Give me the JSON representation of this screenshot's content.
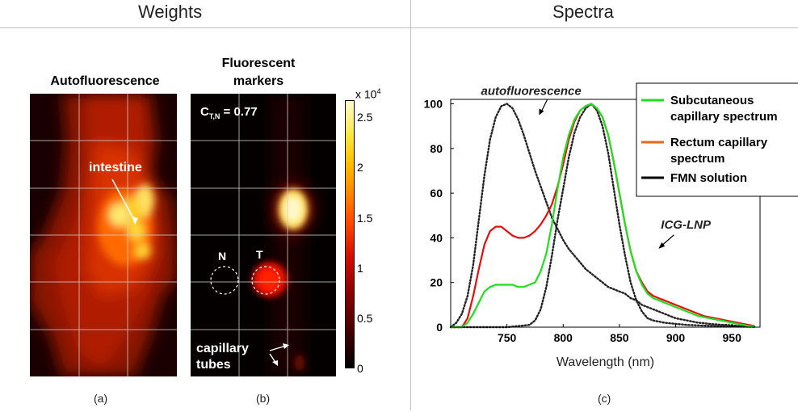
{
  "headers": {
    "weights": "Weights",
    "spectra": "Spectra"
  },
  "panel_a": {
    "title": "Autofluorescence",
    "annotation": "intestine",
    "sublabel": "(a)"
  },
  "panel_b": {
    "title_line1": "Fluorescent",
    "title_line2": "markers",
    "corr_prefix": "C",
    "corr_sub": "T,N",
    "corr_value": "= 0.77",
    "label_n": "N",
    "label_t": "T",
    "annotation_line1": "capillary",
    "annotation_line2": "tubes",
    "sublabel": "(b)"
  },
  "colorbar": {
    "multiplier": "x 10",
    "exponent": "4",
    "ticks": [
      "2.5",
      "2",
      "1.5",
      "1",
      "0.5",
      "0"
    ]
  },
  "panel_c": {
    "sublabel": "(c)"
  },
  "chart_data": {
    "type": "line",
    "xlabel": "Wavelength (nm)",
    "ylabel": "",
    "xlim": [
      700,
      975
    ],
    "ylim": [
      0,
      102
    ],
    "xticks": [
      750,
      800,
      850,
      900,
      950
    ],
    "yticks": [
      0,
      20,
      40,
      60,
      80,
      100
    ],
    "legend_position": "top-right",
    "annotations": [
      {
        "text": "autofluorescence",
        "x": 770,
        "y": 104
      },
      {
        "text": "ICG-LNP",
        "x": 907,
        "y": 42
      }
    ],
    "series": [
      {
        "name": "Subcutaneous capillary spectrum",
        "color": "#22dd22",
        "style": "solid",
        "x": [
          700,
          710,
          715,
          720,
          725,
          730,
          735,
          740,
          745,
          750,
          755,
          760,
          765,
          770,
          775,
          780,
          785,
          790,
          795,
          800,
          805,
          810,
          815,
          820,
          825,
          830,
          835,
          840,
          845,
          850,
          855,
          860,
          865,
          870,
          875,
          880,
          885,
          890,
          895,
          900,
          905,
          910,
          915,
          920,
          925,
          930,
          935,
          940,
          945,
          950,
          955,
          960,
          965,
          970
        ],
        "y": [
          0,
          0,
          2,
          6,
          11,
          16,
          18,
          19,
          19,
          19,
          19,
          18,
          18,
          19,
          20,
          25,
          33,
          46,
          62,
          76,
          86,
          93,
          97,
          99,
          100,
          98,
          94,
          86,
          74,
          60,
          46,
          34,
          25,
          19,
          15,
          13,
          12,
          11,
          10,
          9,
          8,
          7,
          6,
          5,
          4.5,
          4,
          3.5,
          3,
          2.5,
          2,
          1.5,
          1,
          0.5,
          0.3
        ]
      },
      {
        "name": "Rectum capillary spectrum",
        "color": "#e8651e",
        "style": "solid",
        "x": [],
        "y": []
      },
      {
        "name": "FMN solution",
        "color": "#000000",
        "style": "solid",
        "x": [],
        "y": []
      },
      {
        "name": "",
        "color": "#e01010",
        "style": "solid",
        "x": [
          700,
          710,
          715,
          720,
          725,
          730,
          735,
          740,
          745,
          750,
          755,
          760,
          765,
          770,
          775,
          780,
          785,
          790,
          795,
          800,
          805,
          810,
          815,
          820,
          825,
          830,
          835,
          840,
          845,
          850,
          855,
          860,
          865,
          870,
          875,
          880,
          885,
          890,
          895,
          900,
          905,
          910,
          915,
          920,
          925,
          930,
          935,
          940,
          945,
          950,
          955,
          960,
          965,
          970
        ],
        "y": [
          0,
          0,
          4,
          14,
          26,
          37,
          43,
          45,
          45,
          43,
          41,
          40,
          40,
          41,
          43,
          46,
          50,
          55,
          63,
          73,
          84,
          92,
          97,
          99,
          100,
          98,
          94,
          86,
          74,
          60,
          46,
          34,
          25,
          20,
          16,
          14,
          13,
          12,
          11,
          10,
          9,
          8,
          7,
          6,
          5,
          4.5,
          4,
          3.5,
          3,
          2.5,
          2,
          1.5,
          1,
          0.5
        ]
      },
      {
        "name": "",
        "color": "#222222",
        "style": "dotted",
        "x": [
          700,
          705,
          710,
          715,
          720,
          725,
          730,
          735,
          740,
          745,
          750,
          755,
          760,
          765,
          770,
          775,
          780,
          785,
          790,
          795,
          800,
          805,
          810,
          815,
          820,
          825,
          830,
          835,
          840,
          845,
          850,
          855,
          860,
          865,
          870,
          875,
          880,
          885,
          890,
          895,
          900,
          905,
          910,
          915,
          920,
          925,
          930,
          935,
          940,
          945,
          950,
          955,
          960,
          965,
          970
        ],
        "y": [
          0,
          2,
          6,
          14,
          28,
          48,
          68,
          84,
          94,
          99,
          100,
          98,
          93,
          86,
          78,
          70,
          63,
          56,
          49,
          44,
          39,
          35,
          32,
          29,
          26,
          24,
          22,
          20,
          18,
          17,
          16,
          15,
          13,
          12,
          10,
          9,
          8,
          7,
          6,
          5,
          4,
          3.5,
          3,
          2.5,
          2,
          1.8,
          1.5,
          1.3,
          1.1,
          1,
          0.8,
          0.6,
          0.5,
          0.4,
          0.3
        ]
      },
      {
        "name": "",
        "color": "#222222",
        "style": "dotted",
        "x": [
          700,
          710,
          720,
          730,
          740,
          750,
          760,
          770,
          775,
          780,
          785,
          790,
          795,
          800,
          805,
          810,
          815,
          820,
          825,
          830,
          835,
          840,
          845,
          850,
          855,
          860,
          865,
          870,
          875,
          880,
          890,
          900,
          910,
          920,
          930,
          940,
          950,
          960,
          970
        ],
        "y": [
          0,
          0,
          0,
          0,
          0,
          0,
          0.5,
          1,
          3,
          8,
          18,
          32,
          48,
          62,
          76,
          87,
          94,
          98,
          100,
          97,
          90,
          78,
          62,
          46,
          32,
          20,
          12,
          7,
          4,
          3,
          2,
          1.5,
          1,
          0.8,
          0.6,
          0.4,
          0.3,
          0.2,
          0.1
        ]
      }
    ]
  }
}
